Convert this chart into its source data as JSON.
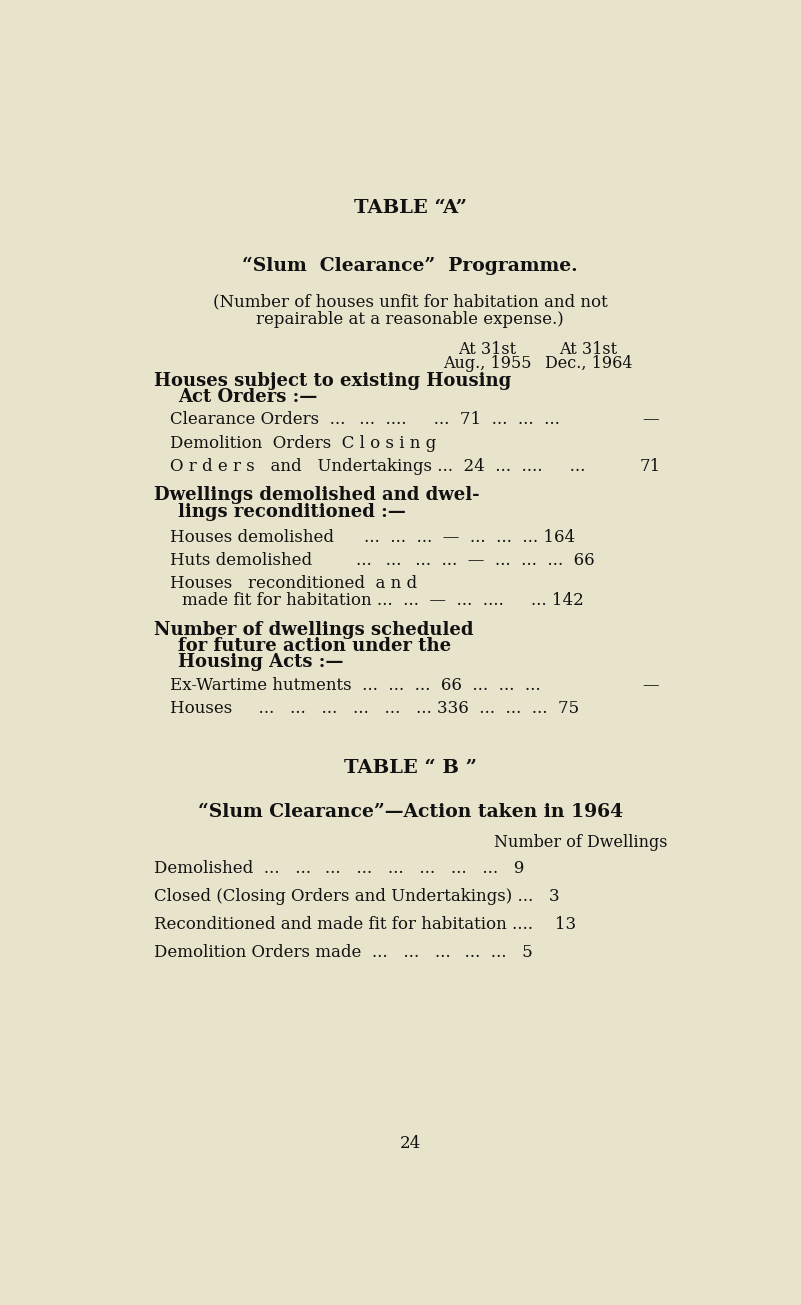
{
  "bg_color": "#e8e4cc",
  "text_color": "#111111",
  "page_number": "24",
  "table_a_title": "TABLE “A”",
  "table_a_subtitle": "“Slum  Clearance”  Programme.",
  "table_a_desc1": "(Number of houses unfit for habitation and not",
  "table_a_desc2": "repairable at a reasonable expense.)",
  "col_header1a": "At 31st",
  "col_header1b": "Aug., 1955",
  "col_header2a": "At 31st",
  "col_header2b": "Dec., 1964",
  "table_b_title": "TABLE “ B ”",
  "table_b_subtitle": "“Slum Clearance”—Action taken in 1964",
  "table_b_col_header": "Number of Dwellings"
}
